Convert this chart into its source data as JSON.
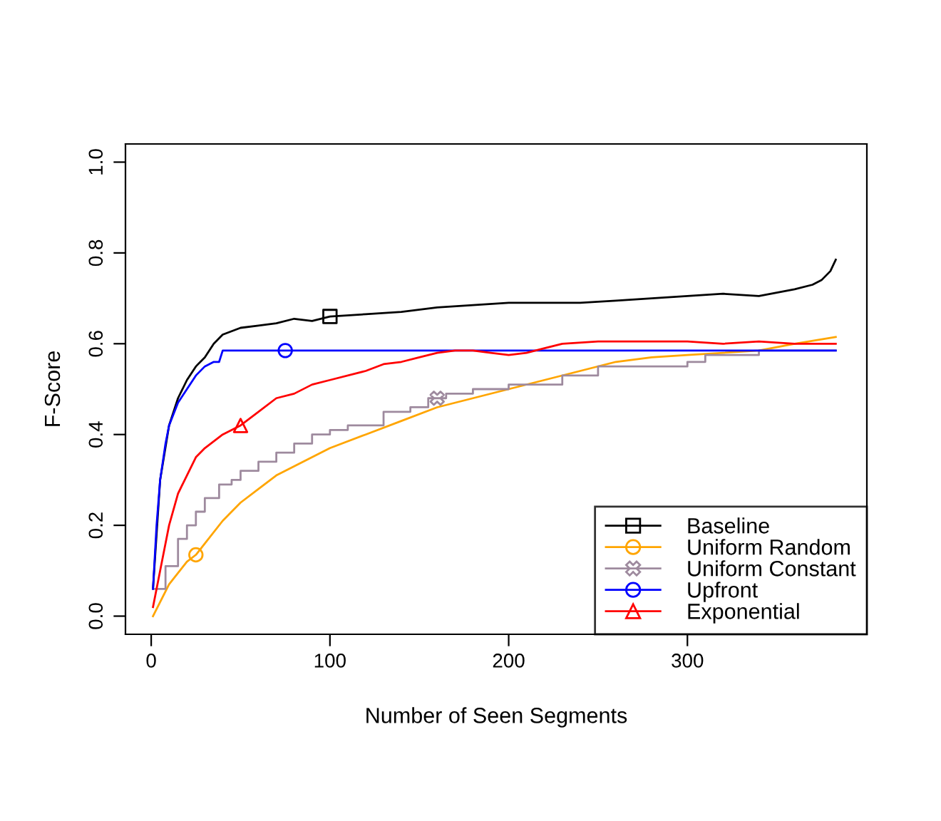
{
  "chart_data": {
    "type": "line",
    "xlabel": "Number of Seen Segments",
    "ylabel": "F-Score",
    "xlim": [
      -14.4,
      400.4
    ],
    "ylim": [
      -0.04,
      1.04
    ],
    "xticks": [
      0,
      100,
      200,
      300
    ],
    "yticks": [
      {
        "value": 0,
        "label": "0.0"
      },
      0.2,
      0.4,
      0.6,
      0.8,
      {
        "value": 1,
        "label": "1.0"
      }
    ],
    "grid": false,
    "legend": "bottom right",
    "series": [
      {
        "name": "Baseline",
        "color": "#000000",
        "x": [
          1,
          5,
          10,
          15,
          20,
          25,
          30,
          35,
          40,
          50,
          60,
          70,
          80,
          90,
          100,
          120,
          140,
          160,
          180,
          200,
          220,
          240,
          260,
          280,
          300,
          320,
          340,
          360,
          370,
          375,
          380,
          383
        ],
        "values": [
          0.06,
          0.3,
          0.42,
          0.48,
          0.52,
          0.55,
          0.57,
          0.6,
          0.62,
          0.635,
          0.64,
          0.645,
          0.655,
          0.65,
          0.66,
          0.665,
          0.67,
          0.68,
          0.685,
          0.69,
          0.69,
          0.69,
          0.695,
          0.7,
          0.705,
          0.71,
          0.705,
          0.72,
          0.73,
          0.74,
          0.76,
          0.785
        ]
      },
      {
        "name": "Uniform Random",
        "color": "#ffa500",
        "x": [
          1,
          10,
          20,
          25,
          30,
          40,
          50,
          60,
          70,
          80,
          100,
          120,
          140,
          160,
          180,
          200,
          220,
          240,
          260,
          280,
          300,
          320,
          340,
          360,
          383
        ],
        "values": [
          0.0,
          0.07,
          0.12,
          0.135,
          0.16,
          0.21,
          0.25,
          0.28,
          0.31,
          0.33,
          0.37,
          0.4,
          0.43,
          0.46,
          0.48,
          0.5,
          0.52,
          0.54,
          0.56,
          0.57,
          0.575,
          0.58,
          0.585,
          0.6,
          0.615
        ]
      },
      {
        "name": "Uniform Constant",
        "type": "step",
        "color": "#9e8a9e",
        "x": [
          1,
          8,
          15,
          20,
          25,
          30,
          38,
          45,
          50,
          60,
          70,
          80,
          90,
          100,
          110,
          130,
          145,
          155,
          165,
          180,
          200,
          230,
          250,
          270,
          300,
          310,
          340,
          383
        ],
        "values": [
          0.06,
          0.11,
          0.17,
          0.2,
          0.23,
          0.26,
          0.29,
          0.3,
          0.32,
          0.34,
          0.36,
          0.38,
          0.4,
          0.41,
          0.42,
          0.45,
          0.46,
          0.48,
          0.49,
          0.5,
          0.51,
          0.53,
          0.55,
          0.55,
          0.56,
          0.575,
          0.585,
          0.585
        ]
      },
      {
        "name": "Upfront",
        "color": "#0000ff",
        "x": [
          1,
          3,
          5,
          8,
          10,
          15,
          20,
          25,
          30,
          35,
          38,
          40,
          383
        ],
        "values": [
          0.06,
          0.2,
          0.3,
          0.38,
          0.42,
          0.47,
          0.5,
          0.53,
          0.55,
          0.56,
          0.56,
          0.585,
          0.585
        ]
      },
      {
        "name": "Exponential",
        "color": "#ff0000",
        "x": [
          1,
          5,
          10,
          15,
          20,
          25,
          30,
          40,
          50,
          60,
          70,
          80,
          90,
          100,
          120,
          130,
          140,
          150,
          160,
          170,
          180,
          190,
          200,
          210,
          220,
          230,
          250,
          270,
          300,
          320,
          340,
          360,
          383
        ],
        "values": [
          0.02,
          0.1,
          0.2,
          0.27,
          0.31,
          0.35,
          0.37,
          0.4,
          0.42,
          0.45,
          0.48,
          0.49,
          0.51,
          0.52,
          0.54,
          0.555,
          0.56,
          0.57,
          0.58,
          0.585,
          0.585,
          0.58,
          0.575,
          0.58,
          0.59,
          0.6,
          0.605,
          0.605,
          0.605,
          0.6,
          0.605,
          0.6,
          0.6
        ]
      },
      {
        "type": "scatter",
        "color": "#000000",
        "marker": "square",
        "x": [
          100
        ],
        "values": [
          0.66
        ]
      },
      {
        "type": "scatter",
        "color": "#ffa500",
        "marker": "circle",
        "x": [
          25
        ],
        "values": [
          0.135
        ]
      },
      {
        "type": "scatter",
        "color": "#9e8a9e",
        "marker": "cross",
        "x": [
          160
        ],
        "values": [
          0.48
        ]
      },
      {
        "type": "scatter",
        "color": "#0000ff",
        "marker": "circle",
        "x": [
          75
        ],
        "values": [
          0.585
        ]
      },
      {
        "type": "scatter",
        "color": "#ff0000",
        "marker": "triangle",
        "x": [
          50
        ],
        "values": [
          0.42
        ]
      }
    ]
  }
}
